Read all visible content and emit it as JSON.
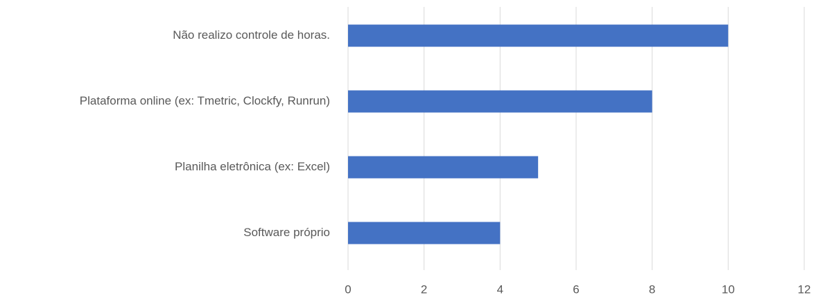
{
  "chart_data": {
    "type": "bar",
    "orientation": "horizontal",
    "categories": [
      "Não realizo controle de horas.",
      "Plataforma online (ex: Tmetric, Clockfy, Runrun)",
      "Planilha eletrônica (ex: Excel)",
      "Software próprio"
    ],
    "values": [
      10,
      8,
      5,
      4
    ],
    "color": "#4472c4",
    "xlim": [
      0,
      12
    ],
    "xticks": [
      0,
      2,
      4,
      6,
      8,
      10,
      12
    ],
    "grid": true
  }
}
